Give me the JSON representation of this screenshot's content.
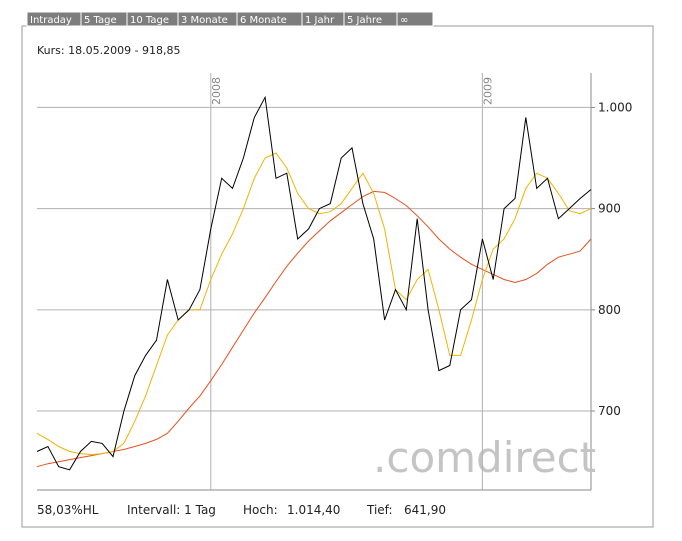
{
  "tabs": [
    "Intraday",
    "5 Tage",
    "10 Tage",
    "3 Monate",
    "6 Monate",
    "1 Jahr",
    "5 Jahre",
    "∞"
  ],
  "quote": "Kurs: 18.05.2009 - 918,85",
  "watermark": ".comdirect",
  "footer": {
    "range": "58,03%HL",
    "interval": "Intervall: 1 Tag",
    "high_label": "Hoch:",
    "high": "1.014,40",
    "low_label": "Tief:",
    "low": "641,90"
  },
  "chart_data": {
    "type": "line",
    "categories": [
      null,
      null,
      null,
      null,
      null,
      null,
      null,
      null,
      null,
      null,
      null,
      null,
      null,
      null,
      null,
      null,
      "2008",
      null,
      null,
      null,
      null,
      null,
      null,
      null,
      null,
      null,
      null,
      null,
      null,
      null,
      null,
      null,
      null,
      null,
      null,
      null,
      null,
      null,
      null,
      null,
      null,
      "2009",
      null,
      null,
      null,
      null,
      null,
      null,
      null,
      null,
      null,
      null
    ],
    "series": [
      {
        "color": "#000000",
        "values": [
          660,
          665,
          645,
          642,
          660,
          670,
          668,
          655,
          700,
          735,
          755,
          770,
          830,
          790,
          800,
          820,
          880,
          930,
          920,
          950,
          990,
          1010,
          930,
          935,
          870,
          880,
          900,
          905,
          950,
          960,
          905,
          870,
          790,
          820,
          800,
          890,
          800,
          740,
          745,
          800,
          810,
          870,
          830,
          900,
          910,
          990,
          920,
          930,
          890,
          900,
          910,
          918.85
        ]
      },
      {
        "color": "#f0b400",
        "values": [
          678,
          672,
          665,
          660,
          658,
          657,
          658,
          660,
          668,
          690,
          715,
          745,
          775,
          790,
          800,
          800,
          830,
          855,
          875,
          900,
          930,
          950,
          955,
          940,
          915,
          900,
          895,
          897,
          905,
          920,
          935,
          915,
          880,
          820,
          810,
          830,
          840,
          800,
          755,
          755,
          790,
          830,
          860,
          870,
          890,
          920,
          935,
          930,
          915,
          898,
          895,
          900
        ]
      },
      {
        "color": "#e8501c",
        "values": [
          645,
          648,
          650,
          652,
          654,
          656,
          658,
          660,
          662,
          665,
          668,
          672,
          678,
          690,
          703,
          715,
          730,
          746,
          763,
          780,
          797,
          812,
          828,
          843,
          856,
          868,
          878,
          888,
          896,
          904,
          912,
          917,
          916,
          910,
          903,
          893,
          882,
          870,
          860,
          852,
          845,
          840,
          835,
          830,
          827,
          830,
          836,
          845,
          852,
          855,
          858,
          870
        ]
      }
    ],
    "ylim": [
      622,
      1034
    ],
    "yticks": [
      700,
      800,
      900,
      {
        "value": 1000,
        "label": "1.000"
      }
    ],
    "grid": true
  }
}
